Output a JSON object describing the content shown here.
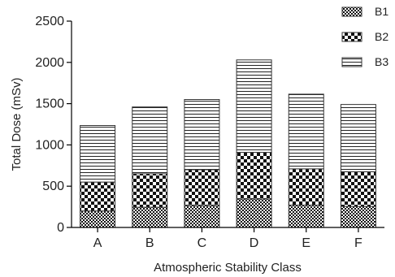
{
  "chart_data": {
    "type": "bar",
    "stacked": true,
    "categories": [
      "A",
      "B",
      "C",
      "D",
      "E",
      "F"
    ],
    "series": [
      {
        "name": "B1",
        "values": [
          200,
          245,
          265,
          345,
          270,
          255
        ],
        "pattern": "checker-small"
      },
      {
        "name": "B2",
        "values": [
          350,
          405,
          435,
          565,
          440,
          420
        ],
        "pattern": "checker-large"
      },
      {
        "name": "B3",
        "values": [
          685,
          810,
          850,
          1120,
          905,
          815
        ],
        "pattern": "horizontal-lines"
      }
    ],
    "xlabel": "Atmospheric Stability Class",
    "ylabel": "Total Dose (mSv)",
    "ylim": [
      0,
      2500
    ],
    "yticks": [
      0,
      500,
      1000,
      1500,
      2000,
      2500
    ],
    "grid": false,
    "legend": "top-right",
    "colors": {
      "ink": "#000000",
      "bar_outline": "#333333",
      "background": "#ffffff"
    }
  }
}
